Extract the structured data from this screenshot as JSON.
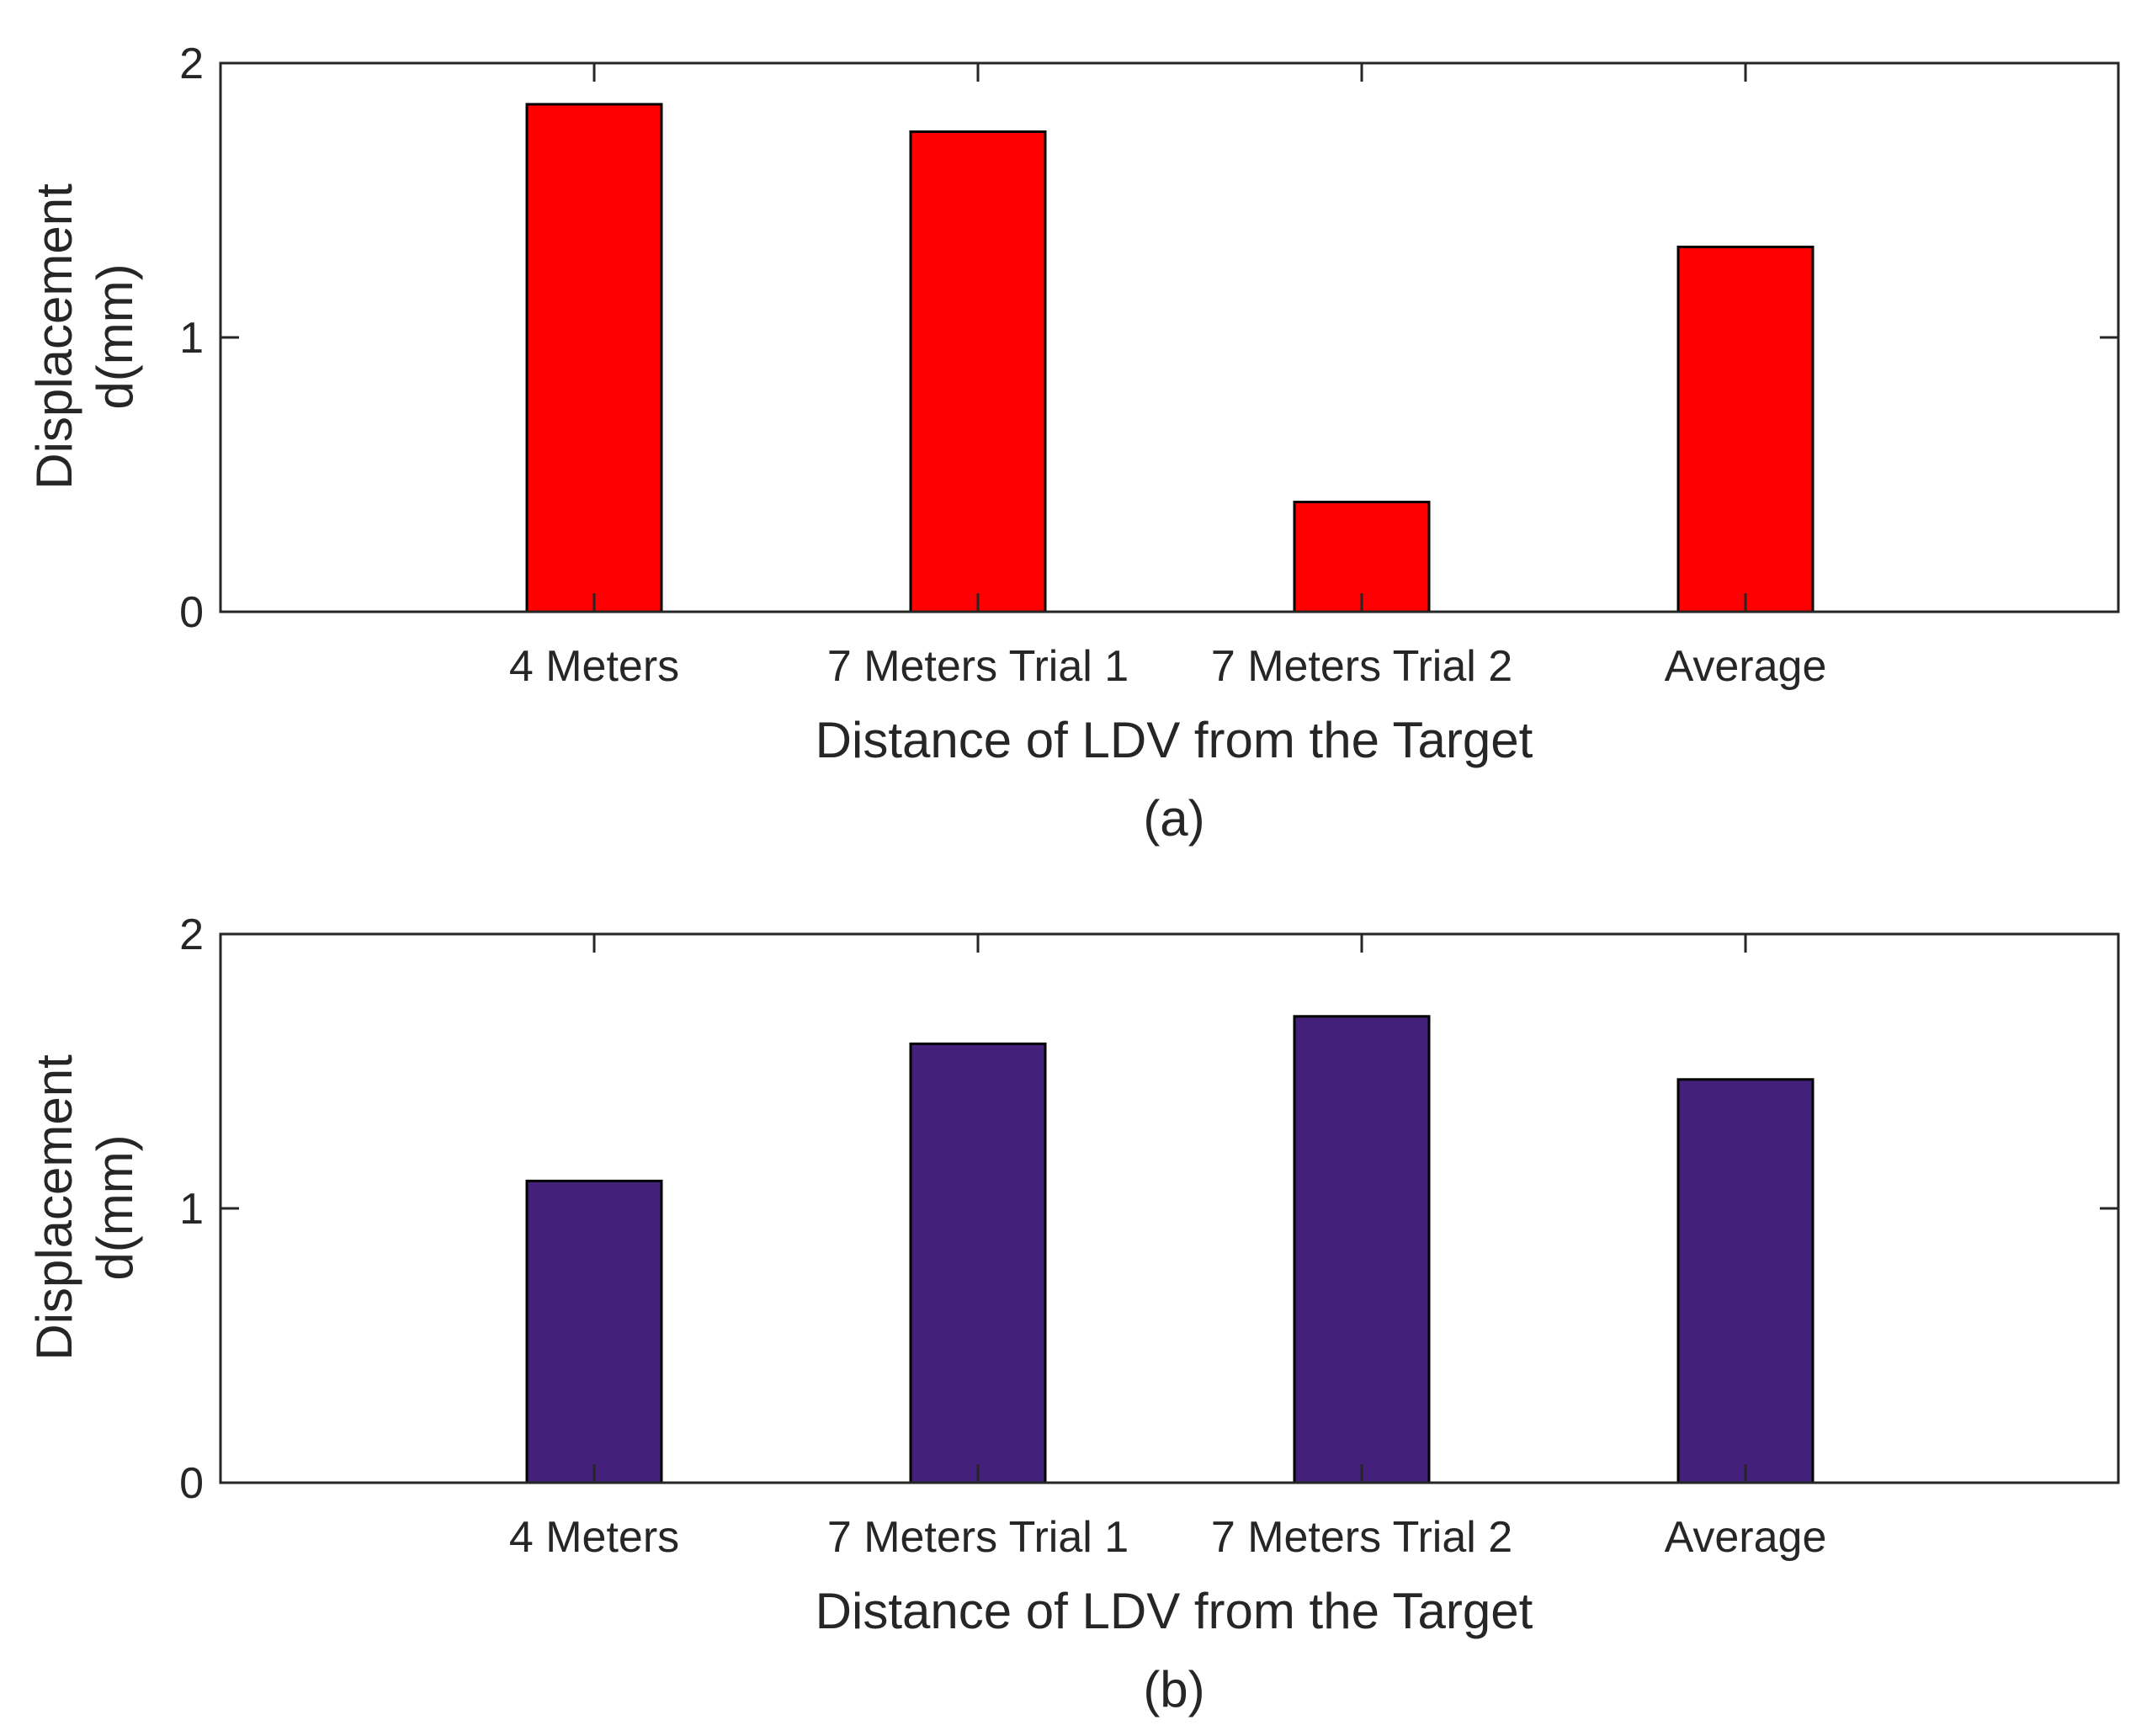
{
  "chart_data": [
    {
      "type": "bar",
      "caption": "(a)",
      "categories": [
        "4 Meters",
        "7 Meters Trial 1",
        "7 Meters Trial 2",
        "Average"
      ],
      "values": [
        1.85,
        1.75,
        0.4,
        1.33
      ],
      "xlabel": "Distance of LDV from the Target",
      "ylabel": [
        "Displacement",
        "d(mm)"
      ],
      "ylim": [
        0,
        2
      ],
      "yticks": [
        "0",
        "1",
        "2"
      ],
      "grid": false,
      "bar_color": "#ff0000"
    },
    {
      "type": "bar",
      "caption": "(b)",
      "categories": [
        "4 Meters",
        "7 Meters Trial 1",
        "7 Meters Trial 2",
        "Average"
      ],
      "values": [
        1.1,
        1.6,
        1.7,
        1.47
      ],
      "xlabel": "Distance of LDV from the Target",
      "ylabel": [
        "Displacement",
        "d(mm)"
      ],
      "ylim": [
        0,
        2
      ],
      "yticks": [
        "0",
        "1",
        "2"
      ],
      "grid": false,
      "bar_color": "#43207a"
    }
  ]
}
